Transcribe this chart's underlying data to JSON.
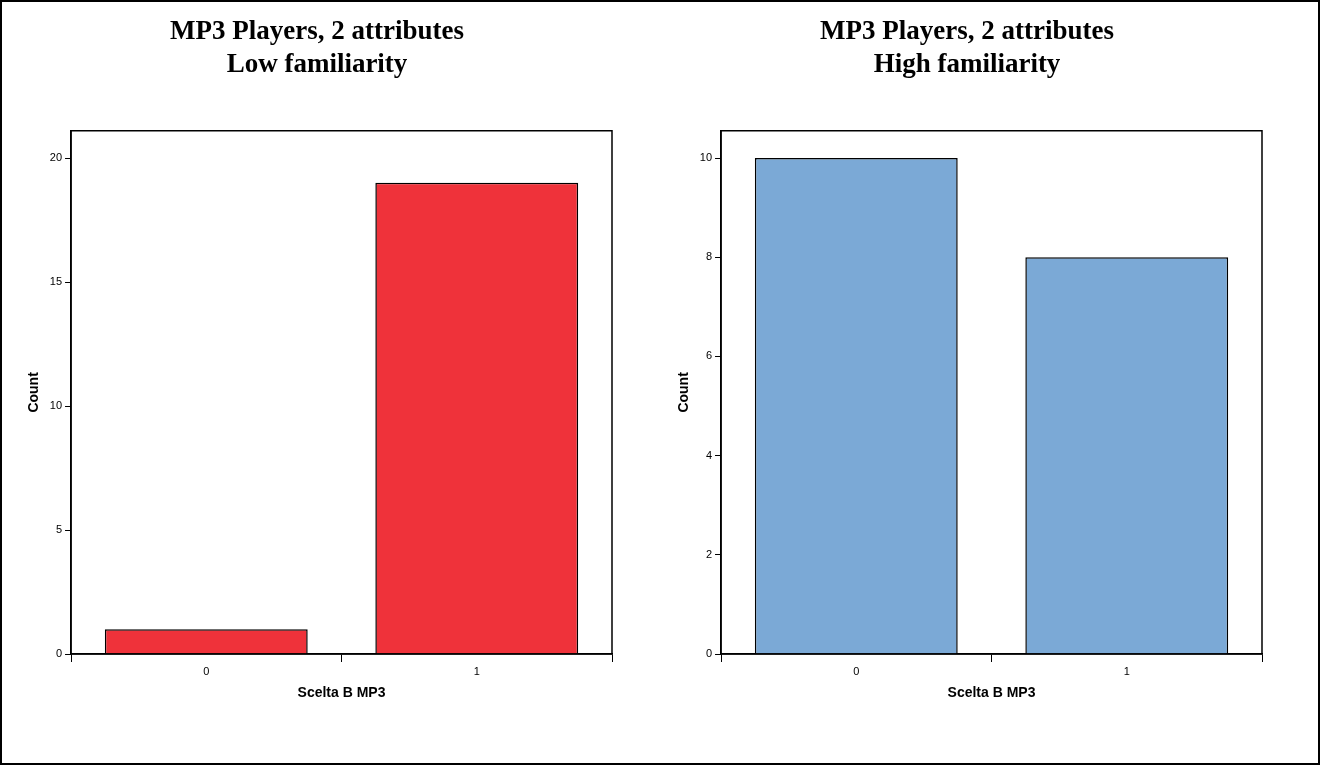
{
  "chart_data": [
    {
      "type": "bar",
      "title": "MP3 Players, 2 attributes\nLow familiarity",
      "xlabel": "Scelta B MP3",
      "ylabel": "Count",
      "categories": [
        "0",
        "1"
      ],
      "values": [
        1,
        19
      ],
      "color": "#ef323a",
      "ylim": [
        0,
        21.1
      ],
      "yticks": [
        0,
        5,
        10,
        15,
        20
      ],
      "grid": false,
      "legend": false
    },
    {
      "type": "bar",
      "title": "MP3 Players, 2 attributes\nHigh familiarity",
      "xlabel": "Scelta B MP3",
      "ylabel": "Count",
      "categories": [
        "0",
        "1"
      ],
      "values": [
        10,
        8
      ],
      "color": "#7ba9d6",
      "ylim": [
        0,
        10.55
      ],
      "yticks": [
        0,
        2,
        4,
        6,
        8,
        10
      ],
      "grid": false,
      "legend": false
    }
  ]
}
